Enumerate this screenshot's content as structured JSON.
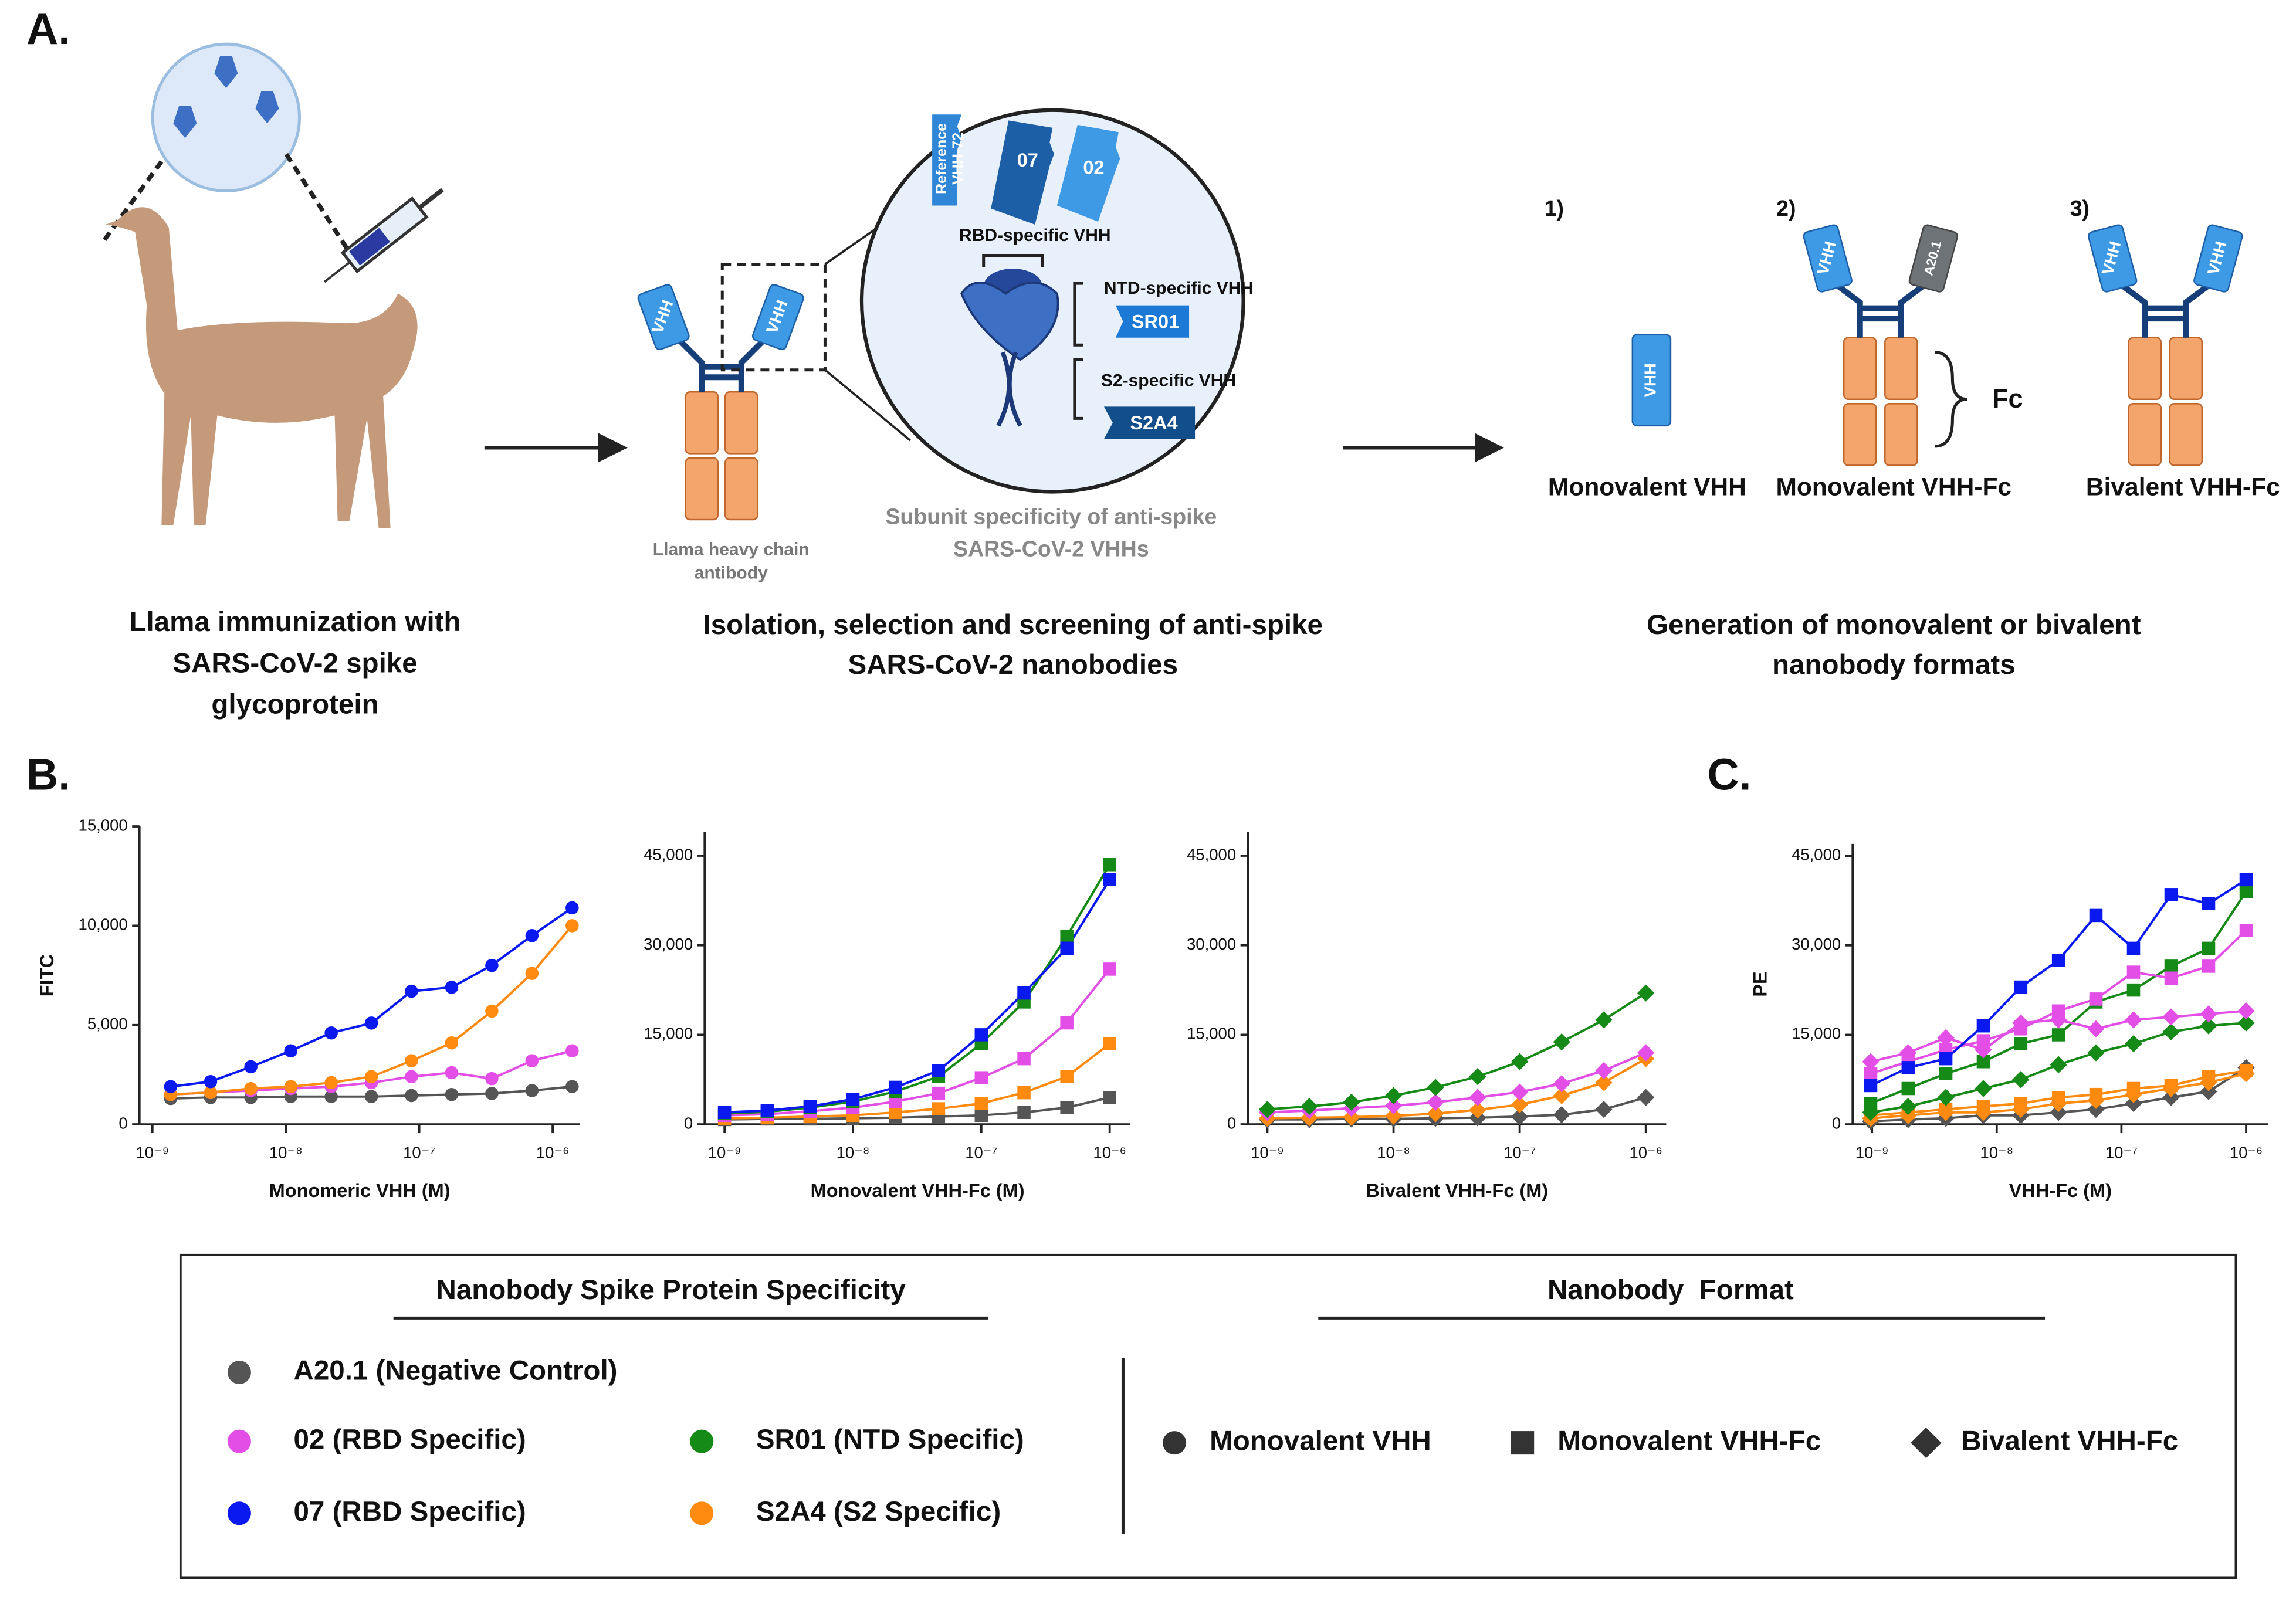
{
  "panel_labels": [
    "A.",
    "B.",
    "C."
  ],
  "panel_a": {
    "step1": {
      "caption": [
        "Llama immunization with",
        "SARS-CoV-2 spike",
        "glycoprotein"
      ]
    },
    "step2": {
      "caption": [
        "Isolation, selection and screening of anti-spike",
        "SARS-CoV-2 nanobodies"
      ],
      "antibody_label": [
        "Llama heavy chain",
        "antibody"
      ],
      "domain_label": "VHH",
      "inset": {
        "title": [
          "Subunit specificity of anti-spike",
          "SARS-CoV-2 VHHs"
        ],
        "reference": [
          "Reference",
          "VHH-72"
        ],
        "clones": [
          "07",
          "02"
        ],
        "rbd": "RBD-specific VHH",
        "ntd": "NTD-specific VHH",
        "ntd_clone": "SR01",
        "s2": "S2-specific VHH",
        "s2_clone": "S2A4"
      }
    },
    "step3": {
      "caption": [
        "Generation of monovalent or bivalent",
        "nanobody formats"
      ],
      "formats": [
        {
          "number": "1)",
          "name": "Monovalent VHH"
        },
        {
          "number": "2)",
          "name": "Monovalent VHH-Fc"
        },
        {
          "number": "3)",
          "name": "Bivalent VHH-Fc"
        }
      ],
      "control_label": "A20.1",
      "fc_label": "Fc"
    }
  },
  "chart_data": [
    {
      "type": "scatter",
      "log_x": true,
      "x_label": "Monomeric VHH (M)",
      "y_label": "FITC",
      "xlim": [
        8e-10,
        1.6e-06
      ],
      "xticks": [
        {
          "value": 1e-09,
          "label": "10⁻⁹"
        },
        {
          "value": 1e-08,
          "label": "10⁻⁸"
        },
        {
          "value": 1e-07,
          "label": "10⁻⁷"
        },
        {
          "value": 1e-06,
          "label": "10⁻⁶"
        }
      ],
      "ylim": [
        0,
        15000
      ],
      "yticks": [
        0,
        {
          "value": 5000,
          "label": "5,000"
        },
        {
          "value": 10000,
          "label": "10,000"
        },
        {
          "value": 15000,
          "label": "15,000"
        }
      ],
      "x": [
        1.37e-09,
        2.73e-09,
        5.47e-09,
        1.09e-08,
        2.19e-08,
        4.38e-08,
        8.75e-08,
        1.75e-07,
        3.5e-07,
        7e-07,
        1.4e-06
      ],
      "series": [
        {
          "name": "A20.1 (Negative Control)",
          "color": "#555555",
          "marker": "circle",
          "values": [
            1300,
            1350,
            1350,
            1400,
            1400,
            1400,
            1450,
            1500,
            1550,
            1700,
            1900
          ]
        },
        {
          "name": "02 (RBD Specific)",
          "color": "#e34fe6",
          "marker": "circle",
          "values": [
            1500,
            1600,
            1700,
            1800,
            1900,
            2100,
            2400,
            2600,
            2300,
            3200,
            3700
          ]
        },
        {
          "name": "S2A4 (S2 Specific)",
          "color": "#ff8a10",
          "marker": "circle",
          "values": [
            1500,
            1600,
            1800,
            1900,
            2100,
            2400,
            3200,
            4100,
            5700,
            7600,
            10000
          ]
        },
        {
          "name": "07 (RBD Specific)",
          "color": "#0a19f0",
          "marker": "circle",
          "values": [
            1900,
            2150,
            2900,
            3700,
            4600,
            5100,
            6700,
            6900,
            8000,
            9500,
            10900
          ]
        }
      ]
    },
    {
      "type": "scatter",
      "log_x": true,
      "x_label": "Monovalent VHH-Fc (M)",
      "xlim": [
        7e-10,
        1.45e-06
      ],
      "xticks": [
        {
          "value": 1e-09,
          "label": "10⁻⁹"
        },
        {
          "value": 1e-08,
          "label": "10⁻⁸"
        },
        {
          "value": 1e-07,
          "label": "10⁻⁷"
        },
        {
          "value": 1e-06,
          "label": "10⁻⁶"
        }
      ],
      "ylim": [
        0,
        49000
      ],
      "yticks": [
        0,
        {
          "value": 15000,
          "label": "15,000"
        },
        {
          "value": 30000,
          "label": "30,000"
        },
        {
          "value": 45000,
          "label": "45,000"
        }
      ],
      "x": [
        1e-09,
        2.15e-09,
        4.64e-09,
        1e-08,
        2.15e-08,
        4.64e-08,
        1e-07,
        2.15e-07,
        4.64e-07,
        1e-06
      ],
      "series": [
        {
          "name": "A20.1 (Negative Control)",
          "color": "#555555",
          "marker": "square",
          "values": [
            800,
            900,
            900,
            1000,
            1100,
            1300,
            1500,
            2000,
            2800,
            4500
          ]
        },
        {
          "name": "S2A4 (S2 Specific)",
          "color": "#ff8a10",
          "marker": "square",
          "values": [
            1000,
            1100,
            1300,
            1500,
            2000,
            2600,
            3500,
            5300,
            8000,
            13500
          ]
        },
        {
          "name": "02 (RBD Specific)",
          "color": "#e34fe6",
          "marker": "square",
          "values": [
            1500,
            1700,
            2200,
            2800,
            3800,
            5200,
            7800,
            11000,
            17000,
            26000
          ]
        },
        {
          "name": "SR01 (NTD Specific)",
          "color": "#168a16",
          "marker": "square",
          "values": [
            1800,
            2100,
            2800,
            3800,
            5500,
            8000,
            13500,
            20500,
            31500,
            43500
          ]
        },
        {
          "name": "07 (RBD Specific)",
          "color": "#0a19f0",
          "marker": "square",
          "values": [
            2000,
            2300,
            3000,
            4200,
            6200,
            9000,
            15000,
            22000,
            29500,
            41000
          ]
        }
      ]
    },
    {
      "type": "scatter",
      "log_x": true,
      "x_label": "Bivalent VHH-Fc  (M)",
      "xlim": [
        7e-10,
        1.45e-06
      ],
      "xticks": [
        {
          "value": 1e-09,
          "label": "10⁻⁹"
        },
        {
          "value": 1e-08,
          "label": "10⁻⁸"
        },
        {
          "value": 1e-07,
          "label": "10⁻⁷"
        },
        {
          "value": 1e-06,
          "label": "10⁻⁶"
        }
      ],
      "ylim": [
        0,
        49000
      ],
      "yticks": [
        0,
        {
          "value": 15000,
          "label": "15,000"
        },
        {
          "value": 30000,
          "label": "30,000"
        },
        {
          "value": 45000,
          "label": "45,000"
        }
      ],
      "x": [
        1e-09,
        2.15e-09,
        4.64e-09,
        1e-08,
        2.15e-08,
        4.64e-08,
        1e-07,
        2.15e-07,
        4.64e-07,
        1e-06
      ],
      "series": [
        {
          "name": "A20.1 (Negative Control)",
          "color": "#555555",
          "marker": "diamond",
          "values": [
            800,
            800,
            900,
            900,
            1000,
            1100,
            1300,
            1600,
            2500,
            4500
          ]
        },
        {
          "name": "S2A4 (S2 Specific)",
          "color": "#ff8a10",
          "marker": "diamond",
          "values": [
            1000,
            1100,
            1200,
            1400,
            1800,
            2400,
            3300,
            4800,
            7000,
            11000
          ]
        },
        {
          "name": "02 (RBD Specific)",
          "color": "#e34fe6",
          "marker": "diamond",
          "values": [
            2000,
            2300,
            2700,
            3100,
            3700,
            4500,
            5400,
            6800,
            9000,
            12000
          ]
        },
        {
          "name": "SR01 (NTD Specific)",
          "color": "#168a16",
          "marker": "diamond",
          "values": [
            2500,
            3000,
            3700,
            4800,
            6200,
            8000,
            10500,
            13800,
            17500,
            22000
          ]
        }
      ]
    },
    {
      "type": "scatter",
      "log_x": true,
      "x_label": "VHH-Fc  (M)",
      "y_label": "PE",
      "xlim": [
        7e-10,
        1.5e-06
      ],
      "xticks": [
        {
          "value": 1e-09,
          "label": "10⁻⁹"
        },
        {
          "value": 1e-08,
          "label": "10⁻⁸"
        },
        {
          "value": 1e-07,
          "label": "10⁻⁷"
        },
        {
          "value": 1e-06,
          "label": "10⁻⁶"
        }
      ],
      "ylim": [
        0,
        47000
      ],
      "yticks": [
        0,
        {
          "value": 15000,
          "label": "15,000"
        },
        {
          "value": 30000,
          "label": "30,000"
        },
        {
          "value": 45000,
          "label": "45,000"
        }
      ],
      "x": [
        9.77e-10,
        1.95e-09,
        3.91e-09,
        7.81e-09,
        1.56e-08,
        3.13e-08,
        6.25e-08,
        1.25e-07,
        2.5e-07,
        5e-07,
        1e-06
      ],
      "series": [
        {
          "name": "A20.1 (Negative Control)",
          "color": "#555555",
          "marker": "diamond",
          "values": [
            500,
            800,
            1000,
            1500,
            1500,
            2000,
            2500,
            3500,
            4500,
            5500,
            9500
          ]
        },
        {
          "name": "S2A4 (S2 Specific)",
          "color": "#ff8a10",
          "marker": "diamond",
          "values": [
            1000,
            1500,
            2000,
            2000,
            2500,
            3500,
            4000,
            5000,
            6000,
            7000,
            8500
          ]
        },
        {
          "name": "S2A4 (S2 Specific)",
          "color": "#ff8a10",
          "marker": "square",
          "values": [
            1500,
            2000,
            2500,
            3000,
            3500,
            4500,
            5000,
            6000,
            6500,
            8000,
            9000
          ]
        },
        {
          "name": "SR01 (NTD Specific)",
          "color": "#168a16",
          "marker": "diamond",
          "values": [
            2000,
            3000,
            4500,
            6000,
            7500,
            10000,
            12000,
            13500,
            15500,
            16500,
            17000
          ]
        },
        {
          "name": "SR01 (NTD Specific)",
          "color": "#168a16",
          "marker": "square",
          "values": [
            3500,
            6000,
            8500,
            10500,
            13500,
            15000,
            20500,
            22500,
            26500,
            29500,
            39000
          ]
        },
        {
          "name": "02 (RBD Specific)",
          "color": "#e34fe6",
          "marker": "diamond",
          "values": [
            10500,
            12000,
            14500,
            12500,
            17000,
            17500,
            16000,
            17500,
            18000,
            18500,
            19000
          ]
        },
        {
          "name": "02 (RBD Specific)",
          "color": "#e34fe6",
          "marker": "square",
          "values": [
            8500,
            10500,
            12500,
            14000,
            16000,
            19000,
            21000,
            25500,
            24500,
            26500,
            32500
          ]
        },
        {
          "name": "07 (RBD Specific)",
          "color": "#0a19f0",
          "marker": "square",
          "values": [
            6500,
            9500,
            11000,
            16500,
            23000,
            27500,
            35000,
            29500,
            38500,
            37000,
            41000
          ]
        }
      ]
    }
  ],
  "legend": {
    "specificity_title": "Nanobody Spike Protein Specificity",
    "format_title": "Nanobody  Format",
    "specificities": [
      {
        "name": "A20.1 (Negative Control)",
        "color": "#555555"
      },
      {
        "name": "02 (RBD Specific)",
        "color": "#e34fe6"
      },
      {
        "name": "07 (RBD Specific)",
        "color": "#0a19f0"
      },
      {
        "name": "SR01 (NTD Specific)",
        "color": "#168a16"
      },
      {
        "name": "S2A4 (S2 Specific)",
        "color": "#ff8a10"
      }
    ],
    "formats": [
      {
        "name": "Monovalent VHH",
        "marker": "circle"
      },
      {
        "name": "Monovalent VHH-Fc",
        "marker": "square"
      },
      {
        "name": "Bivalent VHH-Fc",
        "marker": "diamond"
      }
    ]
  }
}
